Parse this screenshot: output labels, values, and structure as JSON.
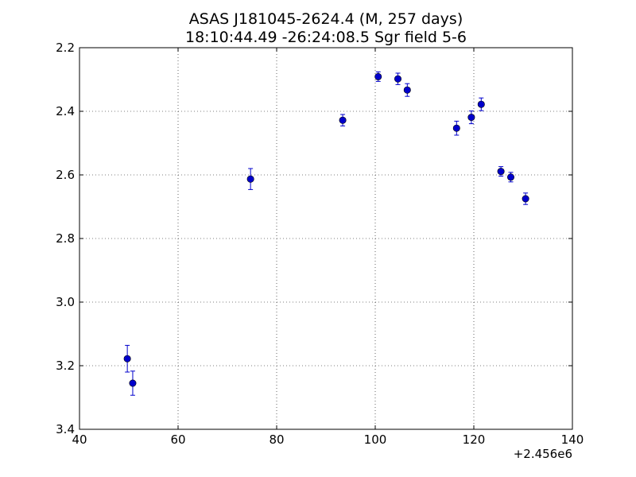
{
  "chart_data": {
    "type": "scatter",
    "title": "ASAS J181045-2624.4  (M, 257 days)",
    "subtitle": "18:10:44.49 -26:24:08.5 Sgr field 5-6",
    "xlabel": "",
    "ylabel": "",
    "x_offset_label": "+2.456e6",
    "xlim": [
      40,
      140
    ],
    "ylim": [
      3.4,
      2.2
    ],
    "y_inverted": true,
    "x_ticks": [
      40,
      60,
      80,
      100,
      120,
      140
    ],
    "x_tick_labels": [
      "40",
      "60",
      "80",
      "100",
      "120",
      "140"
    ],
    "y_ticks": [
      2.2,
      2.4,
      2.6,
      2.8,
      3.0,
      3.2,
      3.4
    ],
    "y_tick_labels": [
      "2.2",
      "2.4",
      "2.6",
      "2.8",
      "3.0",
      "3.2",
      "3.4"
    ],
    "grid": true,
    "series": [
      {
        "color": "#0000cc",
        "points": [
          {
            "x": 49.7,
            "y": 3.178,
            "err": 0.042
          },
          {
            "x": 50.8,
            "y": 3.255,
            "err": 0.038
          },
          {
            "x": 74.7,
            "y": 2.613,
            "err": 0.033
          },
          {
            "x": 93.4,
            "y": 2.428,
            "err": 0.018
          },
          {
            "x": 100.6,
            "y": 2.291,
            "err": 0.015
          },
          {
            "x": 104.6,
            "y": 2.298,
            "err": 0.018
          },
          {
            "x": 106.5,
            "y": 2.333,
            "err": 0.02
          },
          {
            "x": 116.5,
            "y": 2.453,
            "err": 0.022
          },
          {
            "x": 119.5,
            "y": 2.419,
            "err": 0.02
          },
          {
            "x": 121.5,
            "y": 2.378,
            "err": 0.02
          },
          {
            "x": 125.5,
            "y": 2.589,
            "err": 0.015
          },
          {
            "x": 127.5,
            "y": 2.607,
            "err": 0.015
          },
          {
            "x": 130.5,
            "y": 2.675,
            "err": 0.018
          }
        ]
      }
    ]
  }
}
